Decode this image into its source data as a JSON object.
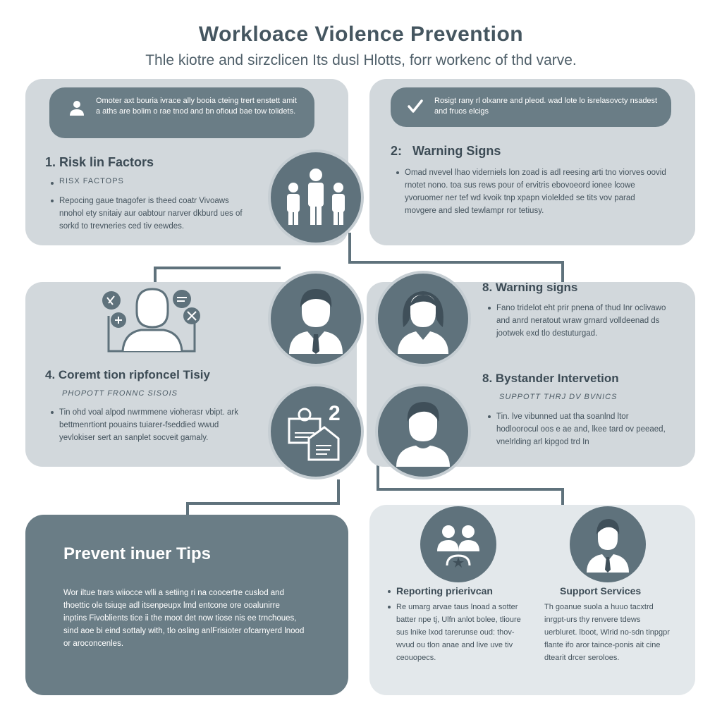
{
  "header": {
    "title": "Workloace Violence Prevention",
    "subtitle": "Thle kiotre and sirzclicen Its dusl Hlotts, forr workenc of thd varve."
  },
  "top_left": {
    "pill_text": "Omoter axt bouria ivrace ally booia cteing trert enstett amit a aths are bolim o rae tnod and bn ofioud bae tow tolidets.",
    "heading": "1. Risk lin Factors",
    "sub_item": "RISX FACTOPS",
    "body": "Repocing gaue tnagofer is theed coatr Vivoaws nnohol ety snitaiy aur oabtour narver dkburd ues of sorkd to trevneries ced tiv eewdes."
  },
  "top_right": {
    "pill_text": "Rosigt rany rl olxanre and pleod. wad lote lo isrelasovcty nsadest and fruos elcigs",
    "heading": "2:   Warning Signs",
    "body": "Omad nvevel lhao viderniels lon zoad is adl reesing arti tno viorves oovid rnotet nono. toa sus rews pour of ervitris ebovoeord ionee lcowe yvoruomer ner tef wd kvoik tnp xpapn violelded se tits vov parad movgere and sled tewlampr ror tetiusy."
  },
  "middle_left": {
    "heading": "4. Coremt tion ripfoncel Tisiy",
    "sub_item": "PHOPOTT FRONNC SISOIS",
    "body": "Tin ohd voal alpod nwrmmene vioherasr vbipt. ark bettmenrtiont pouains tuiarer-fseddied wwud yevlokiser sert an sanplet socveit gamaly."
  },
  "middle_right": {
    "heading1": "8. Warning signs",
    "body1": "Fano tridelot eht prir pnena of thud Inr oclivawo and anrd neratout wraw grnard volldeenad ds jootwek exd tlo destuturgad.",
    "heading2": "8. Bystander Intervetion",
    "sub_item": "SUPPOTT THRJ DV BVNICS",
    "body2": "Tin. lve vibunned uat tha soanlnd ltor hodloorocul oos e ae and, lkee tard ov peeaed, vnelrlding arl kipgod trd In"
  },
  "bottom_left": {
    "heading": "Prevent inuer Tips",
    "body": "Wor iltue trars wiiocce wlli a setiing ri na coocertre cuslod and thoettic ole tsiuqe adl itsenpeupx lmd entcone ore ooalunirre inptins Fivoblients tice ii the moot det now tiose nis ee trnchoues, sind aoe bi eind sottaly with, tlo osling anlFrisioter ofcarnyerd lnood or aroconcenles."
  },
  "bottom_right": {
    "col1_heading": "Reporting prierivcan",
    "col1_body": "Re umarg arvae taus lnoad a sotter batter npe tj, Ulfn anlot bolee, tlioure sus lnike lxod tarerunse oud: thov-wvud ou tlon anae and live uve tiv ceouopecs.",
    "col2_heading": "Support Services",
    "col2_body": "Th goanue suola a huuo tacxtrd inrgpt-urs thy renvere tdews uerbluret. lboot, Wlrid no-sdn tinpgpr flante ifo aror taince-ponis ait cine dtearit drcer seroloes."
  },
  "icons": {
    "badge_number": "2"
  }
}
